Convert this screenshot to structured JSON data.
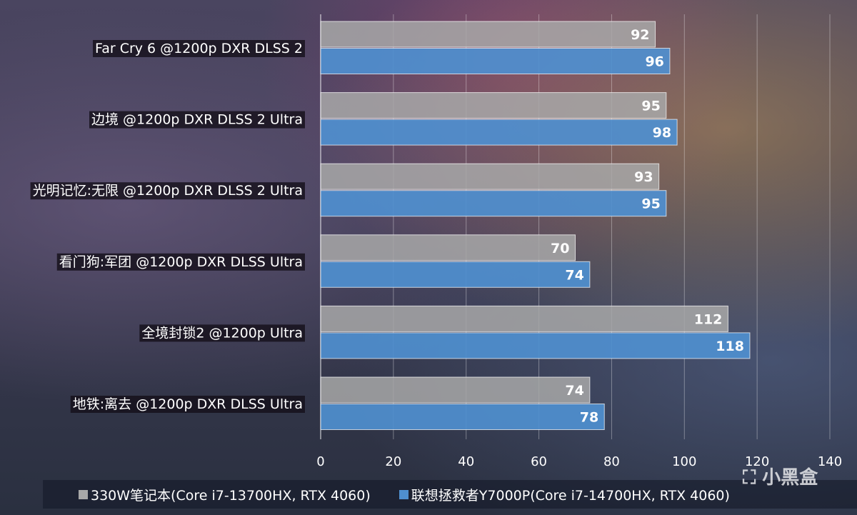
{
  "chart_data": {
    "type": "bar",
    "orientation": "horizontal",
    "categories": [
      "Far Cry 6 @1200p DXR DLSS 2",
      "边境 @1200p DXR DLSS 2 Ultra",
      "光明记忆:无限 @1200p DXR DLSS 2 Ultra",
      "看门狗:军团 @1200p DXR DLSS Ultra",
      "全境封锁2 @1200p Ultra",
      "地铁:离去 @1200p DXR DLSS Ultra"
    ],
    "series": [
      {
        "name": "330W笔记本(Core i7-13700HX, RTX 4060)",
        "color": "#a8a8a8",
        "values": [
          92,
          95,
          93,
          70,
          112,
          74
        ]
      },
      {
        "name": "联想拯救者Y7000P(Core i7-14700HX, RTX 4060)",
        "color": "#4f8fcf",
        "values": [
          96,
          98,
          95,
          74,
          118,
          78
        ]
      }
    ],
    "xlim": [
      0,
      140
    ],
    "xticks": [
      0,
      20,
      40,
      60,
      80,
      100,
      120,
      140
    ],
    "grid": true,
    "legend_position": "bottom"
  },
  "watermark": "小黑盒"
}
